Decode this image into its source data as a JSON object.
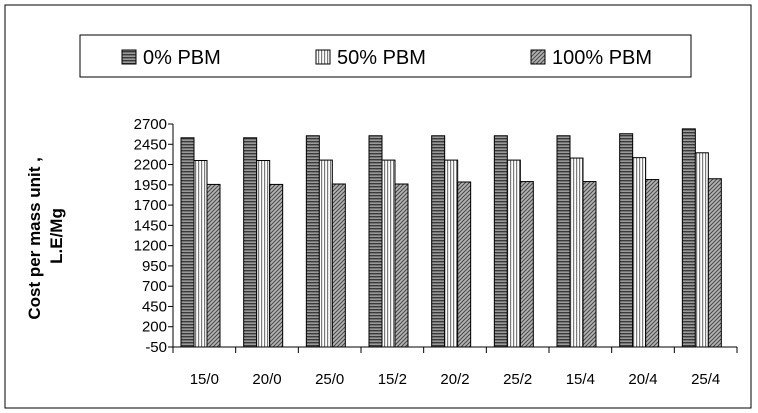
{
  "chart_data": {
    "type": "bar",
    "title": "",
    "xlabel": "",
    "ylabel_line1": "Cost per mass unit ,",
    "ylabel_line2": "L.E/Mg",
    "ylim": [
      -50,
      2700
    ],
    "yticks": [
      -50,
      200,
      450,
      700,
      950,
      1200,
      1450,
      1700,
      1950,
      2200,
      2450,
      2700
    ],
    "categories": [
      "15/0",
      "20/0",
      "25/0",
      "15/2",
      "20/2",
      "25/2",
      "15/4",
      "20/4",
      "25/4"
    ],
    "grid": false,
    "legend_position": "top",
    "series": [
      {
        "name": "0% PBM",
        "color": "#6e6e6e",
        "pattern": "horizontal-lines",
        "values": [
          2530,
          2530,
          2555,
          2555,
          2555,
          2555,
          2555,
          2580,
          2640
        ]
      },
      {
        "name": "50% PBM",
        "color": "#d0d0d0",
        "pattern": "vertical-lines",
        "values": [
          2250,
          2250,
          2255,
          2255,
          2255,
          2255,
          2280,
          2285,
          2345
        ]
      },
      {
        "name": "100% PBM",
        "color": "#8a8a8a",
        "pattern": "diagonal-lines",
        "values": [
          1955,
          1955,
          1960,
          1960,
          1985,
          1990,
          1990,
          2015,
          2025
        ]
      }
    ]
  }
}
